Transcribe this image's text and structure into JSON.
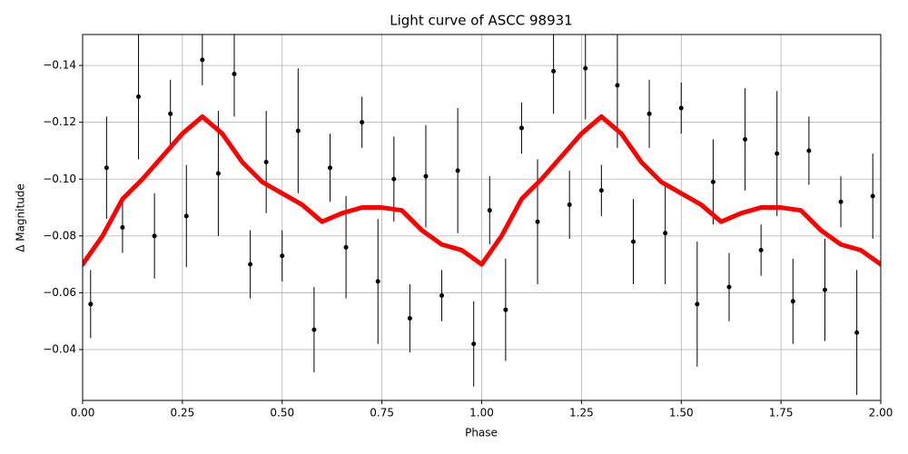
{
  "chart_data": {
    "type": "scatter",
    "title": "Light curve of ASCC 98931",
    "xlabel": "Phase",
    "ylabel": "Δ Magnitude",
    "xlim": [
      0,
      2
    ],
    "ylim": [
      -0.0221,
      -0.1509
    ],
    "grid": true,
    "xticks": [
      {
        "value": 0,
        "label": "0.00"
      },
      {
        "value": 0.25,
        "label": "0.25"
      },
      {
        "value": 0.5,
        "label": "0.50"
      },
      {
        "value": 0.75,
        "label": "0.75"
      },
      {
        "value": 1,
        "label": "1.00"
      },
      {
        "value": 1.25,
        "label": "1.25"
      },
      {
        "value": 1.5,
        "label": "1.50"
      },
      {
        "value": 1.75,
        "label": "1.75"
      },
      {
        "value": 2,
        "label": "2.00"
      }
    ],
    "yticks": [
      {
        "value": -0.04,
        "label": "−0.04"
      },
      {
        "value": -0.06,
        "label": "−0.06"
      },
      {
        "value": -0.08,
        "label": "−0.08"
      },
      {
        "value": -0.1,
        "label": "−0.10"
      },
      {
        "value": -0.12,
        "label": "−0.12"
      },
      {
        "value": -0.14,
        "label": "−0.14"
      }
    ],
    "series": [
      {
        "style": "errorbar",
        "color": "#000000",
        "x": [
          0.02,
          0.06,
          0.1,
          0.14,
          0.18,
          0.22,
          0.26,
          0.3,
          0.34,
          0.38,
          0.42,
          0.46,
          0.5,
          0.54,
          0.58,
          0.62,
          0.66,
          0.7,
          0.74,
          0.78,
          0.82,
          0.86,
          0.9,
          0.94,
          0.98,
          1.02,
          1.06,
          1.1,
          1.14,
          1.18,
          1.22,
          1.26,
          1.3,
          1.34,
          1.38,
          1.42,
          1.46,
          1.5,
          1.54,
          1.58,
          1.62,
          1.66,
          1.7,
          1.74,
          1.78,
          1.82,
          1.86,
          1.9,
          1.94,
          1.98
        ],
        "values": [
          -0.056,
          -0.104,
          -0.083,
          -0.129,
          -0.08,
          -0.123,
          -0.087,
          -0.142,
          -0.102,
          -0.137,
          -0.07,
          -0.106,
          -0.073,
          -0.117,
          -0.047,
          -0.104,
          -0.076,
          -0.12,
          -0.064,
          -0.1,
          -0.051,
          -0.101,
          -0.059,
          -0.103,
          -0.042,
          -0.089,
          -0.054,
          -0.118,
          -0.085,
          -0.138,
          -0.091,
          -0.139,
          -0.096,
          -0.133,
          -0.078,
          -0.123,
          -0.081,
          -0.125,
          -0.056,
          -0.099,
          -0.062,
          -0.114,
          -0.075,
          -0.109,
          -0.057,
          -0.11,
          -0.061,
          -0.092,
          -0.046,
          -0.094
        ],
        "errors": [
          0.012,
          0.018,
          0.009,
          0.022,
          0.015,
          0.012,
          0.018,
          0.009,
          0.022,
          0.015,
          0.012,
          0.018,
          0.009,
          0.022,
          0.015,
          0.012,
          0.018,
          0.009,
          0.022,
          0.015,
          0.012,
          0.018,
          0.009,
          0.022,
          0.015,
          0.012,
          0.018,
          0.009,
          0.022,
          0.015,
          0.012,
          0.018,
          0.009,
          0.022,
          0.015,
          0.012,
          0.018,
          0.009,
          0.022,
          0.015,
          0.012,
          0.018,
          0.009,
          0.022,
          0.015,
          0.012,
          0.018,
          0.009,
          0.022,
          0.015
        ]
      },
      {
        "style": "line",
        "color": "#ff0000",
        "x": [
          0,
          0.05,
          0.1,
          0.15,
          0.2,
          0.25,
          0.3,
          0.35,
          0.4,
          0.45,
          0.5,
          0.55,
          0.6,
          0.65,
          0.7,
          0.75,
          0.8,
          0.85,
          0.9,
          0.95,
          1,
          1.05,
          1.1,
          1.15,
          1.2,
          1.25,
          1.3,
          1.35,
          1.4,
          1.45,
          1.5,
          1.55,
          1.6,
          1.65,
          1.7,
          1.75,
          1.8,
          1.85,
          1.9,
          1.95,
          2
        ],
        "values": [
          -0.07,
          -0.08,
          -0.093,
          -0.1,
          -0.108,
          -0.116,
          -0.122,
          -0.116,
          -0.106,
          -0.099,
          -0.095,
          -0.091,
          -0.085,
          -0.088,
          -0.09,
          -0.09,
          -0.089,
          -0.082,
          -0.077,
          -0.075,
          -0.07,
          -0.08,
          -0.093,
          -0.1,
          -0.108,
          -0.116,
          -0.122,
          -0.116,
          -0.106,
          -0.099,
          -0.095,
          -0.091,
          -0.085,
          -0.088,
          -0.09,
          -0.09,
          -0.089,
          -0.082,
          -0.077,
          -0.075,
          -0.07
        ]
      }
    ]
  }
}
